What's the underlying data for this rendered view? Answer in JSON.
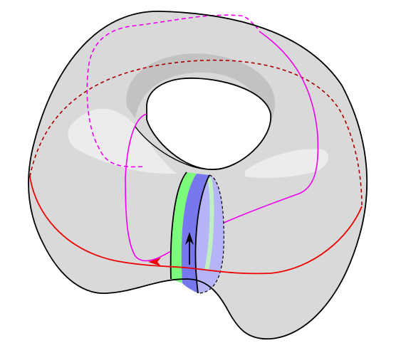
{
  "diagram": {
    "subject": "torus",
    "colors": {
      "surface_fill": "#d9d9d9",
      "outline": "#000000",
      "shadow": "#c2c2c2",
      "highlight": "#ececec",
      "meridian_loop": "#ee00ee",
      "equator_front": "#ee0000",
      "equator_back": "#aa0000",
      "band_green": "#7cfa7c",
      "band_blue": "#7777ee",
      "band_light_blue": "#b4b4f7",
      "band_light_green": "#c0f0c0"
    }
  }
}
